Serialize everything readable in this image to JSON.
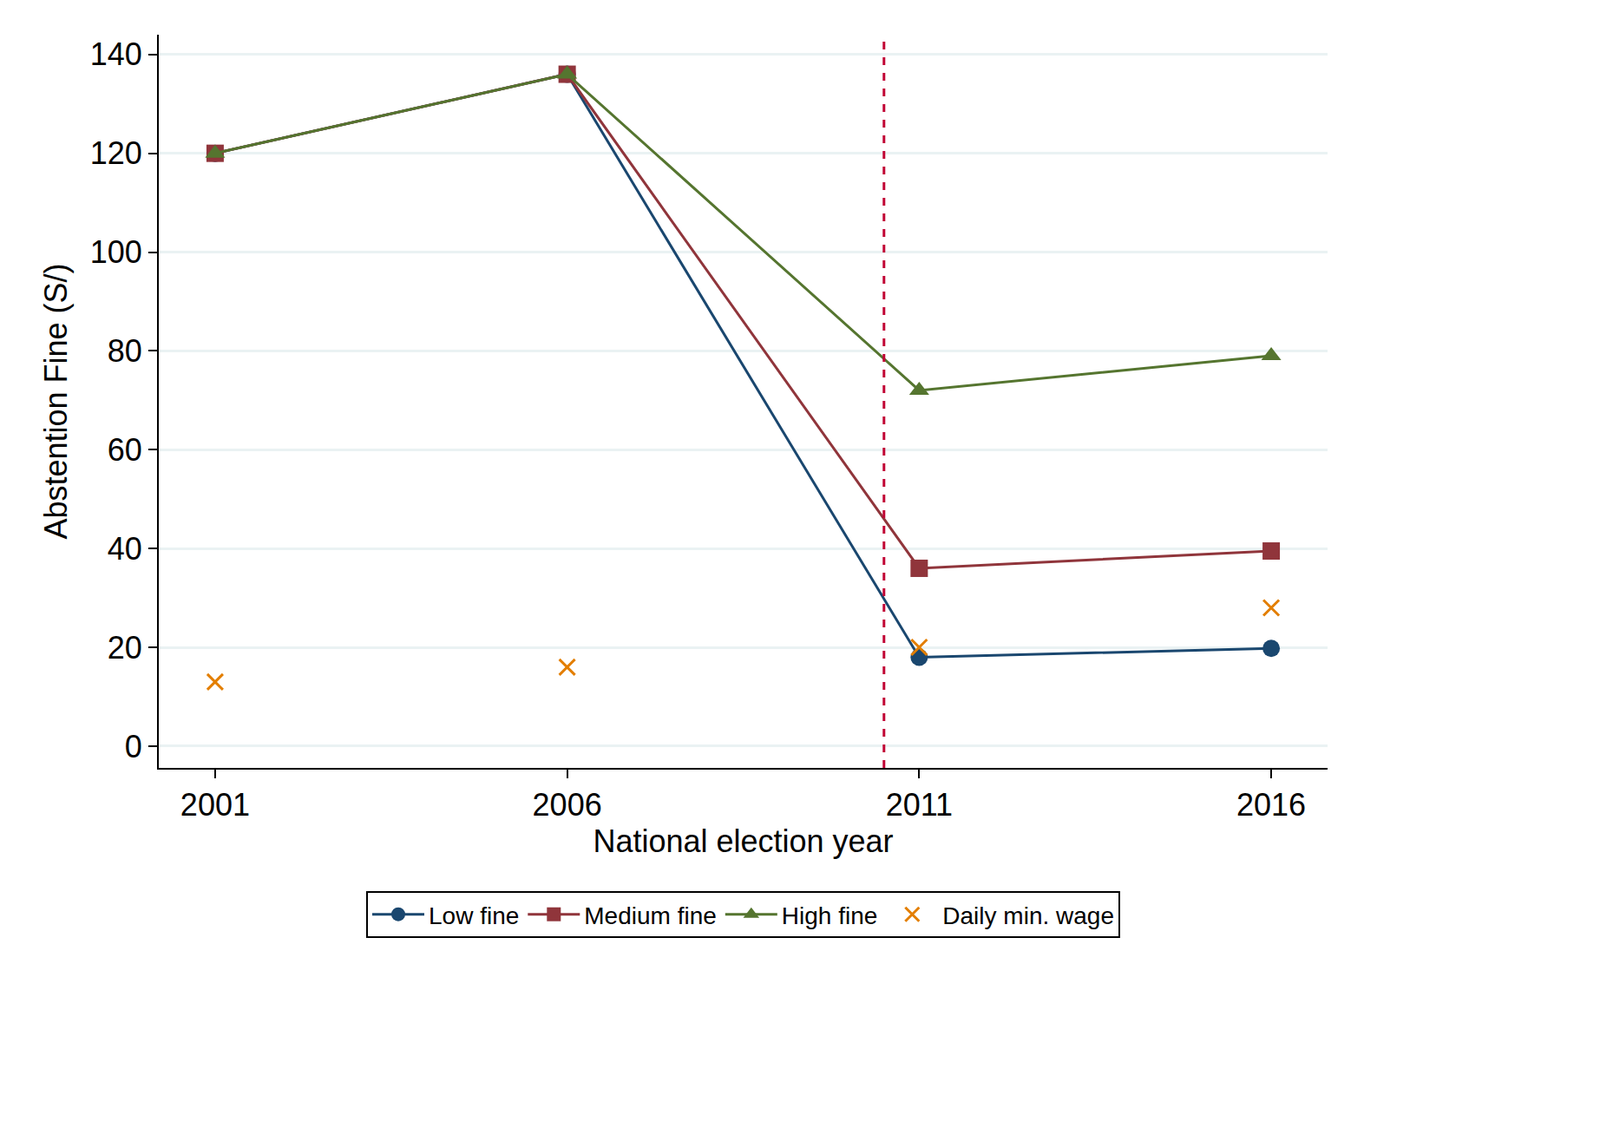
{
  "chart_data": {
    "type": "line",
    "x_label": "National election year",
    "y_label": "Abstention Fine (S/)",
    "x": [
      2001,
      2006,
      2011,
      2016
    ],
    "series": [
      {
        "name": "Low fine",
        "color": "#1a476f",
        "marker": "circle",
        "values": [
          120,
          136,
          18,
          19.8
        ]
      },
      {
        "name": "Medium fine",
        "color": "#90353b",
        "marker": "square",
        "values": [
          120,
          136,
          36,
          39.5
        ]
      },
      {
        "name": "High fine",
        "color": "#55752f",
        "marker": "triangle-up",
        "values": [
          120,
          136,
          72,
          79
        ]
      },
      {
        "name": "Daily min. wage",
        "color": "#e37e00",
        "marker": "x",
        "type": "scatter",
        "values": [
          13,
          16,
          20,
          28
        ]
      }
    ],
    "xlim": [
      2000.2,
      2016.8
    ],
    "xticks": [
      2001,
      2006,
      2011,
      2016
    ],
    "ylim": [
      -4.4,
      144
    ],
    "yticks": [
      0,
      20,
      40,
      60,
      80,
      100,
      120,
      140
    ],
    "vline": {
      "x": 2010.5,
      "color": "#c10534",
      "line_style": "dash"
    },
    "grid": "y",
    "legend": "bottom"
  }
}
